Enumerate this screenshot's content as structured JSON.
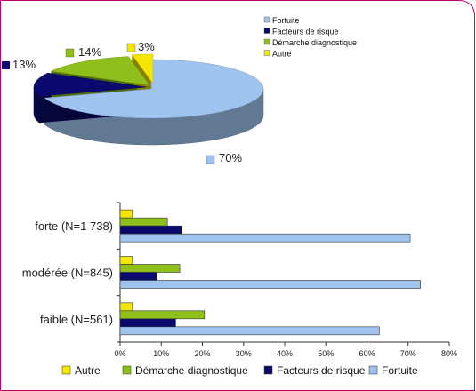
{
  "chart_data": [
    {
      "type": "pie",
      "style": "3d-exploded",
      "slices": [
        {
          "label": "Fortuite",
          "value": 70,
          "value_label": "70%",
          "color": "#9ec3ee"
        },
        {
          "label": "Facteurs de risque",
          "value": 13,
          "value_label": "13%",
          "color": "#0a0a6e"
        },
        {
          "label": "Démarche diagnostique",
          "value": 14,
          "value_label": "14%",
          "color": "#8fbf1a"
        },
        {
          "label": "Autre",
          "value": 3,
          "value_label": "3%",
          "color": "#f3e600"
        }
      ],
      "legend": {
        "position": "top-right",
        "entries": [
          "Fortuite",
          "Facteurs de risque",
          "Démarche diagnostique",
          "Autre"
        ]
      }
    },
    {
      "type": "bar",
      "orientation": "horizontal",
      "categories": [
        "forte (N=1 738)",
        "modérée (N=845)",
        "faible (N=561)"
      ],
      "series": [
        {
          "name": "Autre",
          "color": "#f3e600",
          "values": [
            3,
            3,
            3
          ]
        },
        {
          "name": "Démarche diagnostique",
          "color": "#8fbf1a",
          "values": [
            11.5,
            14.5,
            20.5
          ]
        },
        {
          "name": "Facteurs de risque",
          "color": "#0a0a6e",
          "values": [
            15,
            9,
            13.5
          ]
        },
        {
          "name": "Fortuite",
          "color": "#9ec3ee",
          "values": [
            70.5,
            73,
            63
          ]
        }
      ],
      "xlim": [
        0,
        80
      ],
      "xticks": [
        "0%",
        "10%",
        "20%",
        "30%",
        "40%",
        "50%",
        "60%",
        "70%",
        "80%"
      ],
      "grid": false,
      "legend": {
        "position": "bottom"
      }
    }
  ]
}
